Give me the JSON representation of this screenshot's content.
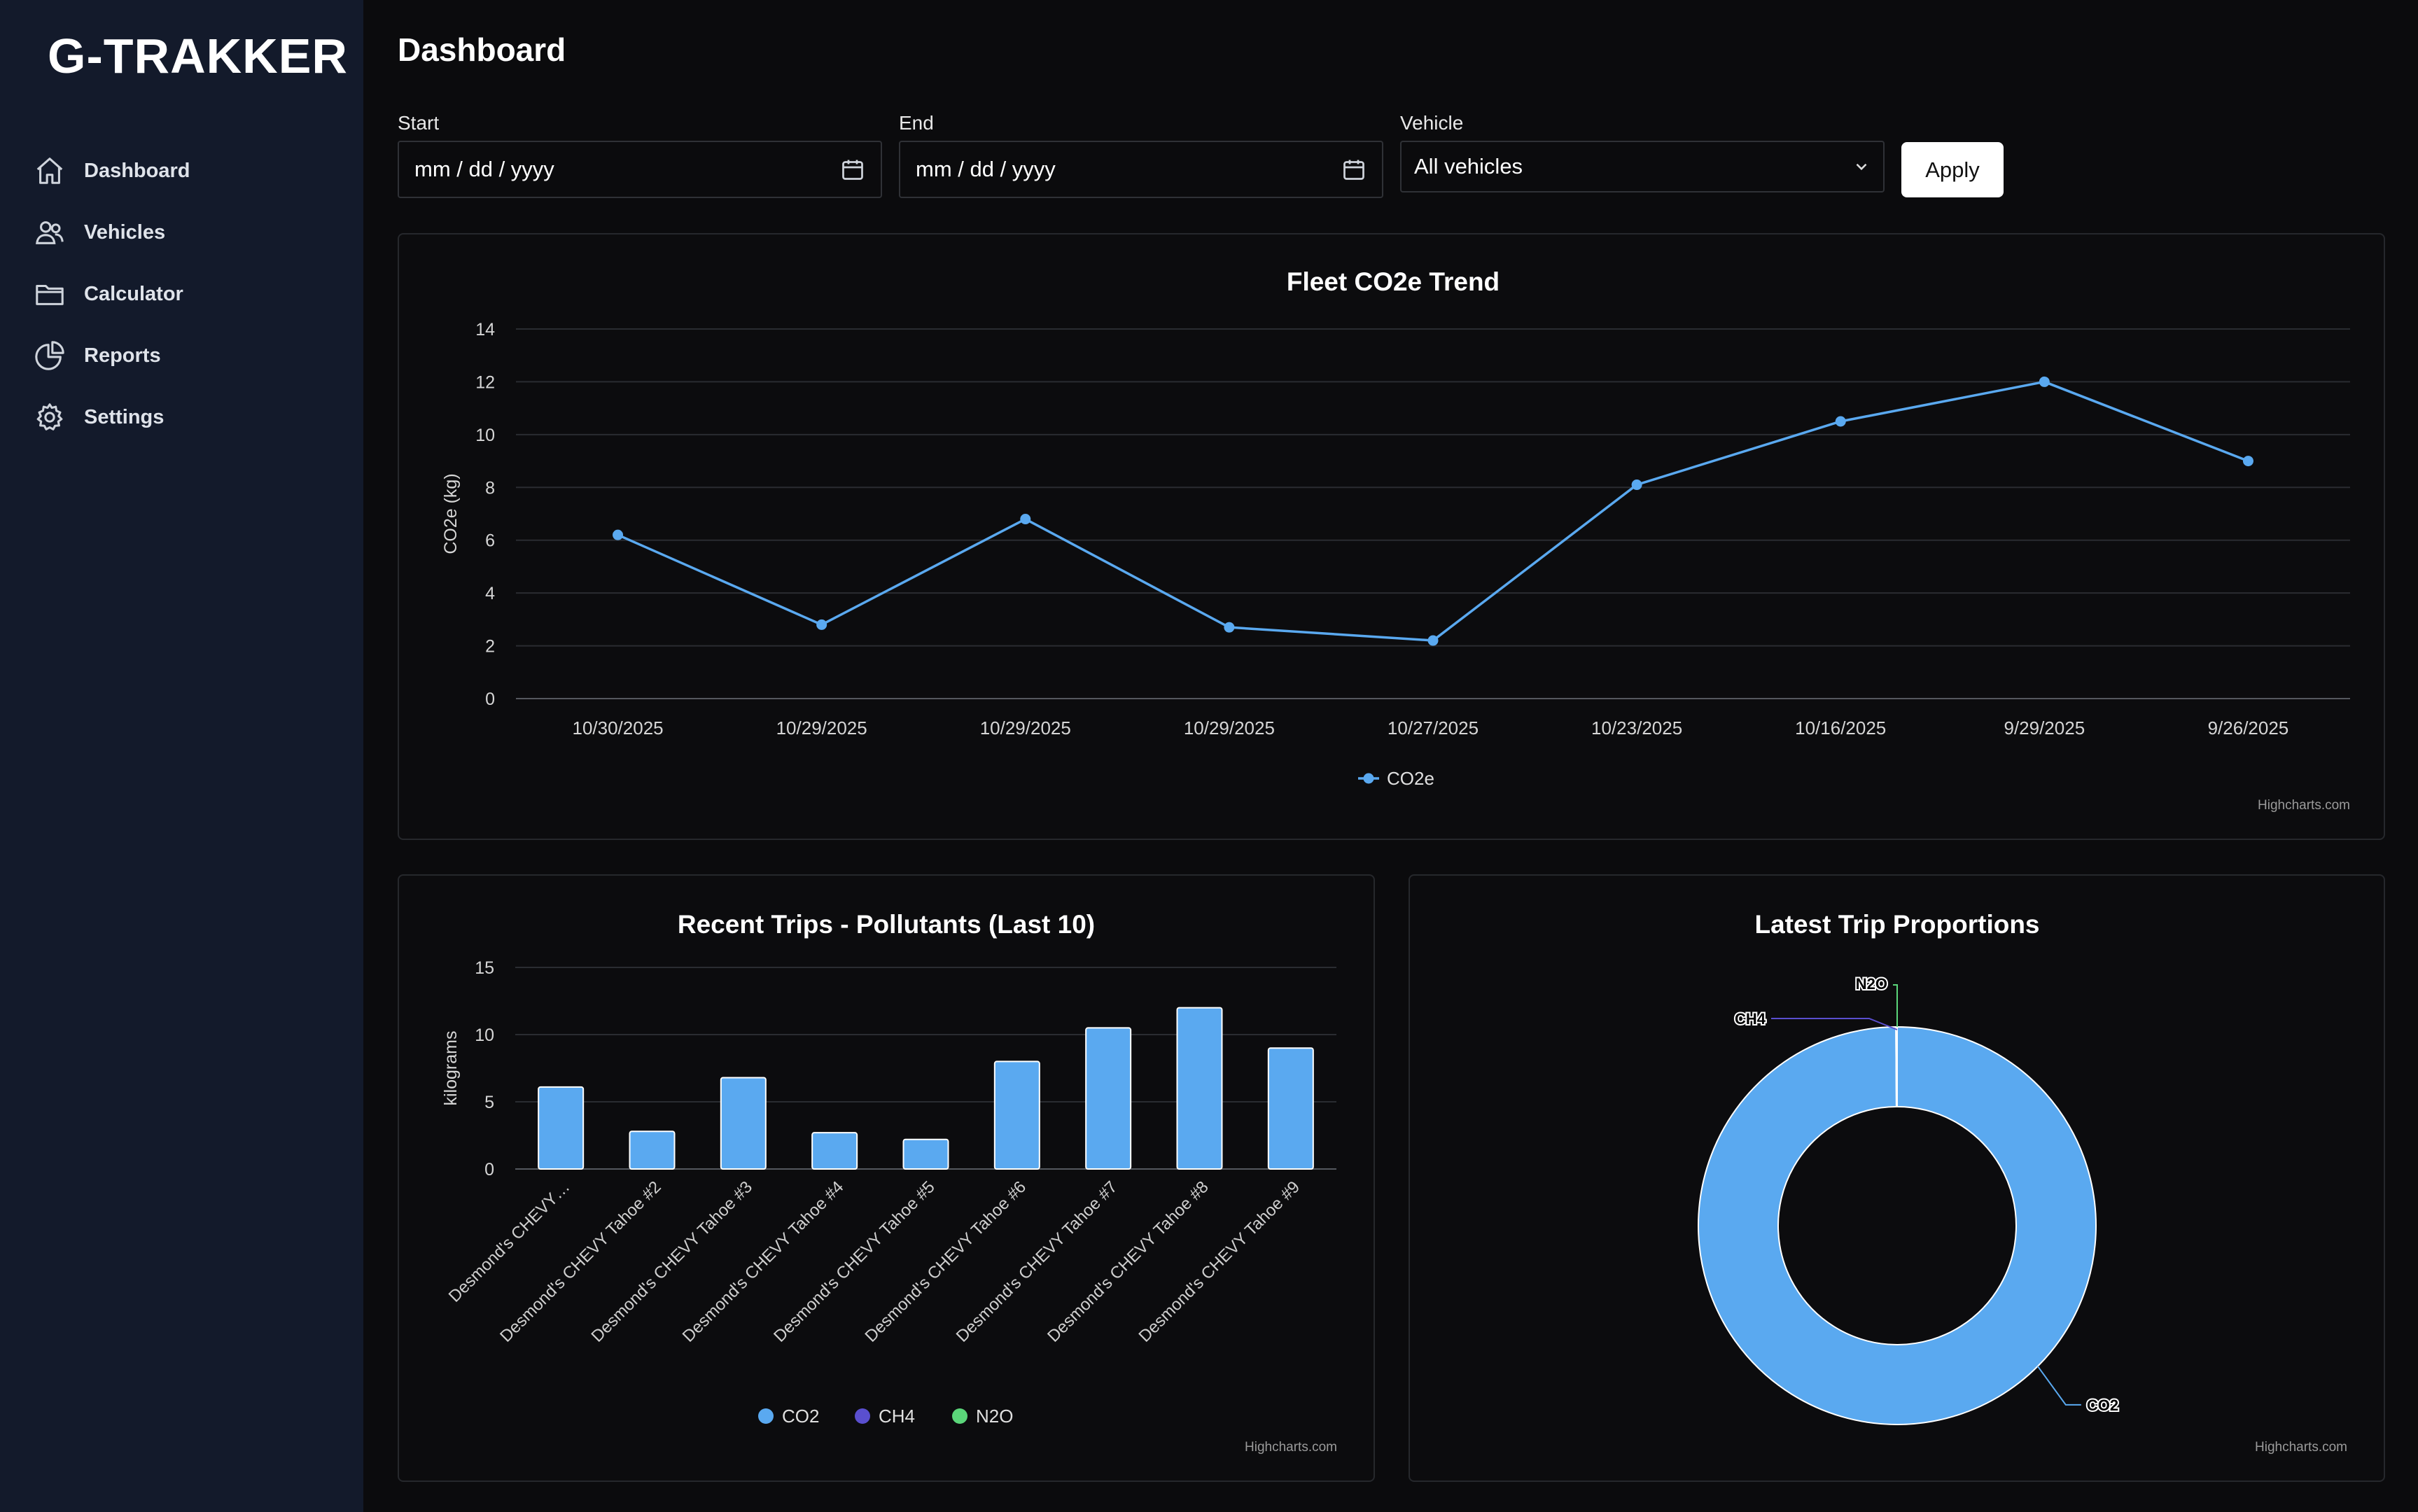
{
  "app": {
    "brand": "G-TRAKKER"
  },
  "sidebar": {
    "items": [
      {
        "label": "Dashboard",
        "icon": "home-icon"
      },
      {
        "label": "Vehicles",
        "icon": "users-icon"
      },
      {
        "label": "Calculator",
        "icon": "folder-icon"
      },
      {
        "label": "Reports",
        "icon": "pie-chart-icon"
      },
      {
        "label": "Settings",
        "icon": "gear-icon"
      }
    ]
  },
  "header": {
    "title": "Dashboard"
  },
  "filters": {
    "start_label": "Start",
    "start_value": "mm / dd / yyyy",
    "end_label": "End",
    "end_value": "mm / dd / yyyy",
    "vehicle_label": "Vehicle",
    "vehicle_value": "All vehicles",
    "apply_label": "Apply"
  },
  "credits": "Highcharts.com",
  "colors": {
    "co2": "#5aa9f0",
    "ch4": "#5a4fcf",
    "n2o": "#5bd67a",
    "sidebar": "#131a2b"
  },
  "chart_data": [
    {
      "type": "line",
      "title": "Fleet CO2e Trend",
      "ylabel": "CO2e (kg)",
      "ylim": [
        0,
        14
      ],
      "yticks": [
        0,
        2,
        4,
        6,
        8,
        10,
        12,
        14
      ],
      "categories": [
        "10/30/2025",
        "10/29/2025",
        "10/29/2025",
        "10/29/2025",
        "10/27/2025",
        "10/23/2025",
        "10/16/2025",
        "9/29/2025",
        "9/26/2025"
      ],
      "series": [
        {
          "name": "CO2e",
          "values": [
            6.2,
            2.8,
            6.8,
            2.7,
            2.2,
            8.1,
            10.5,
            12.0,
            9.0
          ]
        }
      ],
      "legend": "bottom-center"
    },
    {
      "type": "bar",
      "title": "Recent Trips - Pollutants (Last 10)",
      "ylabel": "kilograms",
      "ylim": [
        0,
        15
      ],
      "yticks": [
        0,
        5,
        10,
        15
      ],
      "categories": [
        "Desmond's CHEVY…",
        "Desmond's CHEVY Tahoe #2",
        "Desmond's CHEVY Tahoe #3",
        "Desmond's CHEVY Tahoe #4",
        "Desmond's CHEVY Tahoe #5",
        "Desmond's CHEVY Tahoe #6",
        "Desmond's CHEVY Tahoe #7",
        "Desmond's CHEVY Tahoe #8",
        "Desmond's CHEVY Tahoe #9"
      ],
      "series": [
        {
          "name": "CO2",
          "values": [
            6.1,
            2.8,
            6.8,
            2.7,
            2.2,
            8.0,
            10.5,
            12.0,
            9.0
          ]
        },
        {
          "name": "CH4",
          "values": [
            0,
            0,
            0,
            0,
            0,
            0,
            0,
            0,
            0
          ]
        },
        {
          "name": "N2O",
          "values": [
            0,
            0,
            0,
            0,
            0,
            0,
            0,
            0,
            0
          ]
        }
      ],
      "legend": "bottom-center"
    },
    {
      "type": "pie",
      "title": "Latest Trip Proportions",
      "slices": [
        {
          "name": "CO2",
          "value": 99.9
        },
        {
          "name": "CH4",
          "value": 0.05
        },
        {
          "name": "N2O",
          "value": 0.05
        }
      ]
    }
  ]
}
